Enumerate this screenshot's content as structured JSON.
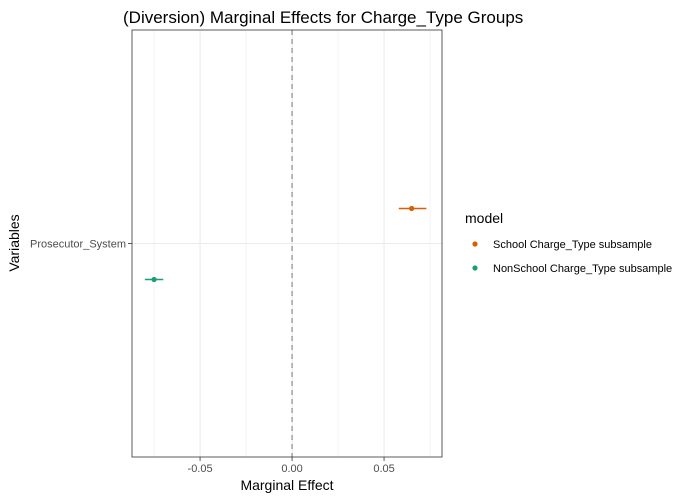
{
  "chart_data": {
    "type": "scatter",
    "title": "(Diversion) Marginal Effects for Charge_Type Groups",
    "xlabel": "Marginal Effect",
    "ylabel": "Variables",
    "xlim": [
      -0.087,
      0.0815
    ],
    "xticks": [
      -0.05,
      0.0,
      0.05
    ],
    "xtick_labels": [
      "-0.05",
      "0.00",
      "0.05"
    ],
    "categories": [
      "Prosecutor_System"
    ],
    "reference_line": 0,
    "grid": true,
    "legend": {
      "title": "model",
      "position": "right"
    },
    "series": [
      {
        "name": "School Charge_Type subsample",
        "color": "#d95f02",
        "estimate": 0.065,
        "ci": [
          0.058,
          0.073
        ],
        "category": "Prosecutor_System"
      },
      {
        "name": "NonSchool Charge_Type subsample",
        "color": "#1b9e77",
        "estimate": -0.075,
        "ci": [
          -0.08,
          -0.07
        ],
        "category": "Prosecutor_System"
      }
    ]
  }
}
